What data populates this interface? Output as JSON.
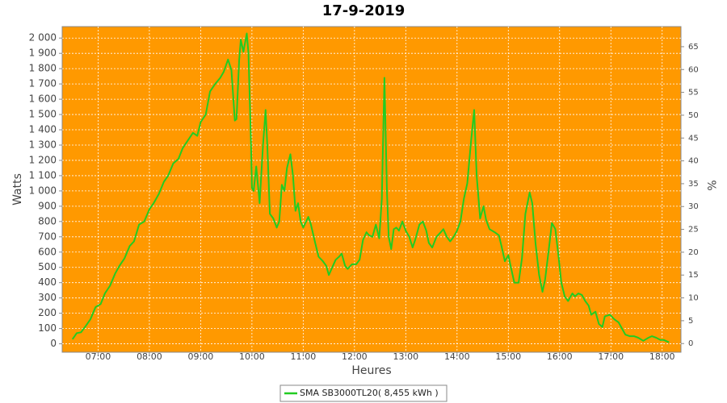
{
  "chart_data": {
    "type": "line",
    "title": "17-9-2019",
    "x_label": "Heures",
    "y_label": "Watts",
    "y2_label": "%",
    "xlim": [
      "06:18",
      "18:22"
    ],
    "xticks": [
      "07:00",
      "08:00",
      "09:00",
      "10:00",
      "11:00",
      "12:00",
      "13:00",
      "14:00",
      "15:00",
      "16:00",
      "17:00",
      "18:00"
    ],
    "ylim": [
      -55,
      2075
    ],
    "yticks": [
      0,
      100,
      200,
      300,
      400,
      500,
      600,
      700,
      800,
      900,
      {
        "value": 1000,
        "label": "1 000"
      },
      {
        "value": 1100,
        "label": "1 100"
      },
      {
        "value": 1200,
        "label": "1 200"
      },
      {
        "value": 1300,
        "label": "1 300"
      },
      {
        "value": 1400,
        "label": "1 400"
      },
      {
        "value": 1500,
        "label": "1 500"
      },
      {
        "value": 1600,
        "label": "1 600"
      },
      {
        "value": 1700,
        "label": "1 700"
      },
      {
        "value": 1800,
        "label": "1 800"
      },
      {
        "value": 1900,
        "label": "1 900"
      },
      {
        "value": 2000,
        "label": "2 000"
      }
    ],
    "y2lim": [
      -1.9,
      69.4
    ],
    "y2ticks": [
      0,
      5,
      10,
      15,
      20,
      25,
      30,
      35,
      40,
      45,
      50,
      55,
      60,
      65
    ],
    "grid": true,
    "legend": "bottom",
    "background": "#ff9900",
    "x": [
      "06:30",
      "06:35",
      "06:40",
      "06:46",
      "06:51",
      "06:57",
      "07:03",
      "07:08",
      "07:14",
      "07:20",
      "07:25",
      "07:31",
      "07:37",
      "07:42",
      "07:48",
      "07:54",
      "08:00",
      "08:05",
      "08:11",
      "08:17",
      "08:22",
      "08:28",
      "08:34",
      "08:39",
      "08:45",
      "08:51",
      "08:56",
      "09:00",
      "09:06",
      "09:11",
      "09:17",
      "09:23",
      "09:27",
      "09:32",
      "09:36",
      "09:40",
      "09:42",
      "09:45",
      "09:47",
      "09:50",
      "09:54",
      "09:56",
      "09:59",
      "10:00",
      "10:02",
      "10:05",
      "10:09",
      "10:13",
      "10:16",
      "10:18",
      "10:21",
      "10:25",
      "10:29",
      "10:32",
      "10:35",
      "10:38",
      "10:41",
      "10:45",
      "10:48",
      "10:51",
      "10:54",
      "10:57",
      "11:00",
      "11:06",
      "11:09",
      "11:14",
      "11:18",
      "11:23",
      "11:27",
      "11:30",
      "11:34",
      "11:38",
      "11:42",
      "11:45",
      "11:49",
      "11:52",
      "11:57",
      "12:02",
      "12:06",
      "12:10",
      "12:14",
      "12:17",
      "12:21",
      "12:25",
      "12:29",
      "12:32",
      "12:35",
      "12:38",
      "12:40",
      "12:43",
      "12:46",
      "12:49",
      "12:52",
      "12:56",
      "13:00",
      "13:04",
      "13:08",
      "13:11",
      "13:16",
      "13:20",
      "13:24",
      "13:27",
      "13:31",
      "13:36",
      "13:41",
      "13:44",
      "13:48",
      "13:52",
      "13:56",
      "14:00",
      "14:04",
      "14:08",
      "14:12",
      "14:16",
      "14:20",
      "14:23",
      "14:27",
      "14:31",
      "14:34",
      "14:38",
      "14:44",
      "14:49",
      "14:52",
      "14:56",
      "15:00",
      "15:03",
      "15:07",
      "15:12",
      "15:16",
      "15:20",
      "15:25",
      "15:28",
      "15:32",
      "15:36",
      "15:40",
      "15:43",
      "15:47",
      "15:51",
      "15:55",
      "15:59",
      "16:02",
      "16:06",
      "16:10",
      "16:15",
      "16:18",
      "16:22",
      "16:26",
      "16:30",
      "16:34",
      "16:37",
      "16:42",
      "16:46",
      "16:50",
      "16:53",
      "16:59",
      "17:04",
      "17:09",
      "17:13",
      "17:17",
      "17:22",
      "17:27",
      "17:32",
      "17:38",
      "17:44",
      "17:48",
      "17:53",
      "17:58",
      "18:02",
      "18:08"
    ],
    "series": [
      {
        "name": "SMA SB3000TL20( 8,455 kWh )",
        "color": "#22cc22",
        "values": [
          30,
          70,
          75,
          120,
          160,
          240,
          260,
          330,
          380,
          460,
          510,
          560,
          640,
          670,
          780,
          800,
          880,
          920,
          980,
          1060,
          1100,
          1180,
          1210,
          1280,
          1330,
          1380,
          1360,
          1450,
          1500,
          1650,
          1700,
          1740,
          1780,
          1860,
          1790,
          1460,
          1470,
          1850,
          1990,
          1910,
          2030,
          1900,
          1300,
          1020,
          1000,
          1160,
          920,
          1300,
          1530,
          1300,
          850,
          820,
          760,
          800,
          1040,
          1000,
          1150,
          1240,
          1100,
          870,
          920,
          800,
          760,
          830,
          780,
          660,
          570,
          540,
          510,
          450,
          500,
          550,
          570,
          590,
          510,
          490,
          520,
          520,
          550,
          680,
          730,
          710,
          700,
          780,
          690,
          950,
          1740,
          1000,
          700,
          620,
          750,
          760,
          740,
          800,
          740,
          700,
          630,
          680,
          780,
          800,
          740,
          660,
          630,
          700,
          730,
          750,
          700,
          670,
          700,
          740,
          800,
          950,
          1050,
          1300,
          1530,
          1100,
          820,
          900,
          810,
          750,
          730,
          710,
          640,
          540,
          580,
          500,
          400,
          400,
          560,
          850,
          990,
          920,
          650,
          450,
          340,
          420,
          600,
          790,
          750,
          560,
          400,
          310,
          280,
          330,
          310,
          330,
          320,
          280,
          250,
          190,
          210,
          130,
          110,
          180,
          190,
          160,
          140,
          100,
          60,
          50,
          50,
          40,
          20,
          40,
          50,
          40,
          25,
          25,
          10
        ]
      }
    ]
  }
}
